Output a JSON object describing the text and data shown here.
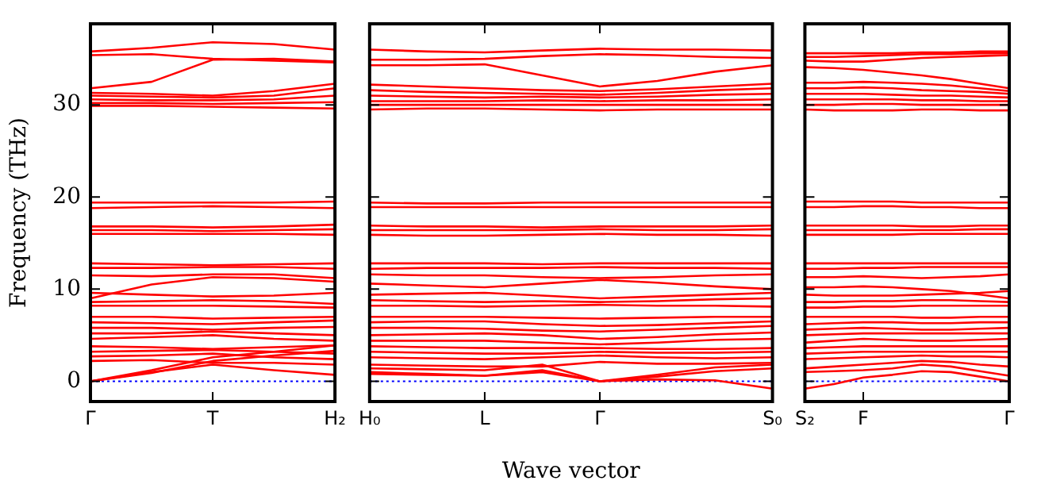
{
  "chart_data": [
    {
      "type": "line",
      "ylabel": "Frequency (THz)",
      "categories": [
        "Γ",
        null,
        "T",
        null,
        "H₂"
      ],
      "ylim": [
        -2.2,
        38.8
      ],
      "yticks": [
        0,
        10,
        20,
        30
      ],
      "ref_lines": [
        {
          "axis": "y",
          "value": 0,
          "color": "#0000ff",
          "line_style": "dotted"
        }
      ],
      "series": [
        {
          "color": "#ff0000",
          "values": [
            35.8,
            36.2,
            36.8,
            36.6,
            36.0
          ]
        },
        {
          "color": "#ff0000",
          "values": [
            35.4,
            35.5,
            35.0,
            34.8,
            34.6
          ]
        },
        {
          "color": "#ff0000",
          "values": [
            31.8,
            32.5,
            34.9,
            35.0,
            34.7
          ]
        },
        {
          "color": "#ff0000",
          "values": [
            31.3,
            31.2,
            31.0,
            31.5,
            32.3
          ]
        },
        {
          "color": "#ff0000",
          "values": [
            31.0,
            30.9,
            30.8,
            31.0,
            31.8
          ]
        },
        {
          "color": "#ff0000",
          "values": [
            30.6,
            30.5,
            30.5,
            30.6,
            31.0
          ]
        },
        {
          "color": "#ff0000",
          "values": [
            30.2,
            30.2,
            30.1,
            30.2,
            30.3
          ]
        },
        {
          "color": "#ff0000",
          "values": [
            29.9,
            29.9,
            29.8,
            29.7,
            29.6
          ]
        },
        {
          "color": "#ff0000",
          "values": [
            19.4,
            19.4,
            19.4,
            19.4,
            19.5
          ]
        },
        {
          "color": "#ff0000",
          "values": [
            18.8,
            18.9,
            19.0,
            18.9,
            18.8
          ]
        },
        {
          "color": "#ff0000",
          "values": [
            16.8,
            16.8,
            16.7,
            16.8,
            17.0
          ]
        },
        {
          "color": "#ff0000",
          "values": [
            16.4,
            16.4,
            16.3,
            16.4,
            16.5
          ]
        },
        {
          "color": "#ff0000",
          "values": [
            16.0,
            16.0,
            16.0,
            16.0,
            15.9
          ]
        },
        {
          "color": "#ff0000",
          "values": [
            12.8,
            12.7,
            12.6,
            12.7,
            12.8
          ]
        },
        {
          "color": "#ff0000",
          "values": [
            12.3,
            12.3,
            12.4,
            12.4,
            12.2
          ]
        },
        {
          "color": "#ff0000",
          "values": [
            11.5,
            11.4,
            11.6,
            11.6,
            11.2
          ]
        },
        {
          "color": "#ff0000",
          "values": [
            9.0,
            10.5,
            11.3,
            11.2,
            10.8
          ]
        },
        {
          "color": "#ff0000",
          "values": [
            9.6,
            9.4,
            9.2,
            9.3,
            9.6
          ]
        },
        {
          "color": "#ff0000",
          "values": [
            8.6,
            8.7,
            8.8,
            8.7,
            8.4
          ]
        },
        {
          "color": "#ff0000",
          "values": [
            8.2,
            8.2,
            8.2,
            8.1,
            8.0
          ]
        },
        {
          "color": "#ff0000",
          "values": [
            7.0,
            7.0,
            6.8,
            6.9,
            7.0
          ]
        },
        {
          "color": "#ff0000",
          "values": [
            6.4,
            6.3,
            6.2,
            6.4,
            6.6
          ]
        },
        {
          "color": "#ff0000",
          "values": [
            5.8,
            5.8,
            5.6,
            5.8,
            5.9
          ]
        },
        {
          "color": "#ff0000",
          "values": [
            5.2,
            5.2,
            5.4,
            5.2,
            5.0
          ]
        },
        {
          "color": "#ff0000",
          "values": [
            4.6,
            4.8,
            5.0,
            4.6,
            4.4
          ]
        },
        {
          "color": "#ff0000",
          "values": [
            3.8,
            3.7,
            3.5,
            3.7,
            3.9
          ]
        },
        {
          "color": "#ff0000",
          "values": [
            3.2,
            3.3,
            3.4,
            3.2,
            3.0
          ]
        },
        {
          "color": "#ff0000",
          "values": [
            2.7,
            2.8,
            3.0,
            2.6,
            2.4
          ]
        },
        {
          "color": "#ff0000",
          "values": [
            2.2,
            2.3,
            2.0,
            2.0,
            1.8
          ]
        },
        {
          "color": "#ff0000",
          "values": [
            0,
            1.0,
            1.8,
            1.2,
            0.7
          ]
        },
        {
          "color": "#ff0000",
          "values": [
            0,
            0.9,
            2.2,
            2.8,
            3.3
          ]
        },
        {
          "color": "#ff0000",
          "values": [
            0,
            1.2,
            2.6,
            3.2,
            3.9
          ]
        }
      ]
    },
    {
      "type": "line",
      "xlabel": "Wave vector",
      "categories": [
        "H₀",
        null,
        "L",
        null,
        "Γ",
        null,
        null,
        "S₀"
      ],
      "ylim": [
        -2.2,
        38.8
      ],
      "yticks": [
        0,
        10,
        20,
        30
      ],
      "tick_labels": "x",
      "ref_lines": [
        {
          "axis": "y",
          "value": 0,
          "color": "#0000ff",
          "line_style": "dotted"
        }
      ],
      "series": [
        {
          "color": "#ff0000",
          "values": [
            36.0,
            35.8,
            35.7,
            35.9,
            36.1,
            36.0,
            36.0,
            35.9
          ]
        },
        {
          "color": "#ff0000",
          "values": [
            34.9,
            34.9,
            35.0,
            35.3,
            35.5,
            35.4,
            35.2,
            35.1
          ]
        },
        {
          "color": "#ff0000",
          "values": [
            34.3,
            34.3,
            34.4,
            33.2,
            32.0,
            32.6,
            33.6,
            34.3
          ]
        },
        {
          "color": "#ff0000",
          "values": [
            32.2,
            32.0,
            31.8,
            31.6,
            31.5,
            31.7,
            32.0,
            32.3
          ]
        },
        {
          "color": "#ff0000",
          "values": [
            31.6,
            31.4,
            31.3,
            31.2,
            31.1,
            31.3,
            31.6,
            31.8
          ]
        },
        {
          "color": "#ff0000",
          "values": [
            31.0,
            30.9,
            30.8,
            30.9,
            30.8,
            30.9,
            31.1,
            31.2
          ]
        },
        {
          "color": "#ff0000",
          "values": [
            30.4,
            30.4,
            30.4,
            30.5,
            30.4,
            30.5,
            30.5,
            30.6
          ]
        },
        {
          "color": "#ff0000",
          "values": [
            30.0,
            30.0,
            30.0,
            30.0,
            30.0,
            30.0,
            30.0,
            30.0
          ]
        },
        {
          "color": "#ff0000",
          "values": [
            29.5,
            29.6,
            29.6,
            29.5,
            29.4,
            29.5,
            29.5,
            29.5
          ]
        },
        {
          "color": "#ff0000",
          "values": [
            19.4,
            19.3,
            19.3,
            19.4,
            19.4,
            19.4,
            19.4,
            19.4
          ]
        },
        {
          "color": "#ff0000",
          "values": [
            18.9,
            18.9,
            18.9,
            18.9,
            18.9,
            18.9,
            18.9,
            18.9
          ]
        },
        {
          "color": "#ff0000",
          "values": [
            16.9,
            16.8,
            16.8,
            16.7,
            16.8,
            16.8,
            16.8,
            16.9
          ]
        },
        {
          "color": "#ff0000",
          "values": [
            16.4,
            16.4,
            16.4,
            16.4,
            16.5,
            16.4,
            16.4,
            16.5
          ]
        },
        {
          "color": "#ff0000",
          "values": [
            15.9,
            15.8,
            15.8,
            15.9,
            16.0,
            15.9,
            15.9,
            15.8
          ]
        },
        {
          "color": "#ff0000",
          "values": [
            12.8,
            12.8,
            12.8,
            12.7,
            12.8,
            12.8,
            12.8,
            12.8
          ]
        },
        {
          "color": "#ff0000",
          "values": [
            12.2,
            12.3,
            12.3,
            12.3,
            12.4,
            12.3,
            12.3,
            12.2
          ]
        },
        {
          "color": "#ff0000",
          "values": [
            11.6,
            11.5,
            11.5,
            11.3,
            11.2,
            11.3,
            11.5,
            11.6
          ]
        },
        {
          "color": "#ff0000",
          "values": [
            10.6,
            10.4,
            10.2,
            10.6,
            11.0,
            10.7,
            10.3,
            10.0
          ]
        },
        {
          "color": "#ff0000",
          "values": [
            9.4,
            9.5,
            9.6,
            9.3,
            9.0,
            9.2,
            9.4,
            9.6
          ]
        },
        {
          "color": "#ff0000",
          "values": [
            8.8,
            8.7,
            8.6,
            8.7,
            8.6,
            8.7,
            8.9,
            9.0
          ]
        },
        {
          "color": "#ff0000",
          "values": [
            8.2,
            8.2,
            8.1,
            8.2,
            8.3,
            8.2,
            8.2,
            8.1
          ]
        },
        {
          "color": "#ff0000",
          "values": [
            7.0,
            7.0,
            7.0,
            6.9,
            6.8,
            6.9,
            7.0,
            7.0
          ]
        },
        {
          "color": "#ff0000",
          "values": [
            6.4,
            6.5,
            6.5,
            6.2,
            6.0,
            6.1,
            6.3,
            6.5
          ]
        },
        {
          "color": "#ff0000",
          "values": [
            5.8,
            5.8,
            5.7,
            5.5,
            5.4,
            5.6,
            5.8,
            6.0
          ]
        },
        {
          "color": "#ff0000",
          "values": [
            5.0,
            5.1,
            5.2,
            5.0,
            4.6,
            4.8,
            5.1,
            5.3
          ]
        },
        {
          "color": "#ff0000",
          "values": [
            4.4,
            4.4,
            4.4,
            4.2,
            4.0,
            4.2,
            4.5,
            4.6
          ]
        },
        {
          "color": "#ff0000",
          "values": [
            3.8,
            3.7,
            3.6,
            3.6,
            3.6,
            3.5,
            3.5,
            3.6
          ]
        },
        {
          "color": "#ff0000",
          "values": [
            3.2,
            3.1,
            3.0,
            3.0,
            3.2,
            3.1,
            3.1,
            3.2
          ]
        },
        {
          "color": "#ff0000",
          "values": [
            2.6,
            2.5,
            2.4,
            2.6,
            2.8,
            2.6,
            2.5,
            2.6
          ]
        },
        {
          "color": "#ff0000",
          "values": [
            1.8,
            1.7,
            1.6,
            1.6,
            2.1,
            1.9,
            1.9,
            2.0
          ]
        },
        {
          "color": "#ff0000",
          "values": [
            1.4,
            1.3,
            1.2,
            1.8,
            0,
            0.7,
            1.5,
            1.8
          ]
        },
        {
          "color": "#ff0000",
          "values": [
            1.0,
            0.8,
            0.6,
            1.2,
            0,
            0.5,
            1.1,
            1.4
          ]
        },
        {
          "color": "#ff0000",
          "values": [
            0.8,
            0.7,
            0.6,
            1.0,
            0,
            0.2,
            0.1,
            -0.8
          ]
        }
      ]
    },
    {
      "type": "line",
      "categories": [
        "S₂",
        null,
        "F",
        null,
        null,
        null,
        null,
        "Γ"
      ],
      "ylim": [
        -2.2,
        38.8
      ],
      "yticks": [
        0,
        10,
        20,
        30
      ],
      "tick_labels": "x",
      "ref_lines": [
        {
          "axis": "y",
          "value": 0,
          "color": "#0000ff",
          "line_style": "dotted"
        }
      ],
      "series": [
        {
          "color": "#ff0000",
          "values": [
            35.6,
            35.6,
            35.6,
            35.6,
            35.7,
            35.7,
            35.8,
            35.8
          ]
        },
        {
          "color": "#ff0000",
          "values": [
            35.2,
            35.2,
            35.3,
            35.4,
            35.5,
            35.5,
            35.6,
            35.6
          ]
        },
        {
          "color": "#ff0000",
          "values": [
            34.8,
            34.7,
            34.7,
            34.9,
            35.1,
            35.2,
            35.3,
            35.4
          ]
        },
        {
          "color": "#ff0000",
          "values": [
            34.1,
            34.0,
            33.8,
            33.5,
            33.2,
            32.8,
            32.3,
            31.8
          ]
        },
        {
          "color": "#ff0000",
          "values": [
            32.4,
            32.4,
            32.5,
            32.4,
            32.3,
            32.1,
            31.8,
            31.5
          ]
        },
        {
          "color": "#ff0000",
          "values": [
            31.8,
            31.8,
            31.9,
            31.8,
            31.6,
            31.5,
            31.4,
            31.2
          ]
        },
        {
          "color": "#ff0000",
          "values": [
            31.2,
            31.2,
            31.2,
            31.1,
            31.0,
            31.0,
            30.9,
            30.8
          ]
        },
        {
          "color": "#ff0000",
          "values": [
            30.6,
            30.6,
            30.6,
            30.6,
            30.5,
            30.5,
            30.4,
            30.4
          ]
        },
        {
          "color": "#ff0000",
          "values": [
            30.0,
            30.0,
            30.1,
            30.1,
            30.0,
            30.0,
            30.0,
            30.0
          ]
        },
        {
          "color": "#ff0000",
          "values": [
            29.5,
            29.4,
            29.4,
            29.4,
            29.5,
            29.5,
            29.4,
            29.4
          ]
        },
        {
          "color": "#ff0000",
          "values": [
            19.5,
            19.5,
            19.5,
            19.5,
            19.4,
            19.4,
            19.4,
            19.4
          ]
        },
        {
          "color": "#ff0000",
          "values": [
            18.9,
            18.9,
            19.0,
            19.0,
            18.9,
            18.9,
            18.8,
            18.8
          ]
        },
        {
          "color": "#ff0000",
          "values": [
            16.9,
            16.9,
            16.9,
            16.9,
            16.8,
            16.8,
            16.9,
            16.9
          ]
        },
        {
          "color": "#ff0000",
          "values": [
            16.4,
            16.4,
            16.4,
            16.4,
            16.4,
            16.4,
            16.5,
            16.5
          ]
        },
        {
          "color": "#ff0000",
          "values": [
            15.9,
            15.9,
            15.9,
            15.9,
            16.0,
            16.0,
            16.0,
            16.0
          ]
        },
        {
          "color": "#ff0000",
          "values": [
            12.8,
            12.8,
            12.8,
            12.8,
            12.8,
            12.8,
            12.8,
            12.8
          ]
        },
        {
          "color": "#ff0000",
          "values": [
            12.2,
            12.2,
            12.3,
            12.3,
            12.4,
            12.4,
            12.4,
            12.4
          ]
        },
        {
          "color": "#ff0000",
          "values": [
            11.3,
            11.3,
            11.4,
            11.3,
            11.2,
            11.3,
            11.4,
            11.6
          ]
        },
        {
          "color": "#ff0000",
          "values": [
            10.2,
            10.2,
            10.3,
            10.2,
            10.0,
            9.8,
            9.4,
            9.0
          ]
        },
        {
          "color": "#ff0000",
          "values": [
            9.4,
            9.3,
            9.3,
            9.3,
            9.4,
            9.5,
            9.6,
            9.8
          ]
        },
        {
          "color": "#ff0000",
          "values": [
            8.6,
            8.6,
            8.7,
            8.7,
            8.8,
            8.8,
            8.7,
            8.6
          ]
        },
        {
          "color": "#ff0000",
          "values": [
            8.0,
            8.0,
            8.1,
            8.1,
            8.2,
            8.2,
            8.2,
            8.2
          ]
        },
        {
          "color": "#ff0000",
          "values": [
            7.0,
            7.0,
            7.0,
            7.0,
            6.9,
            6.9,
            7.0,
            7.0
          ]
        },
        {
          "color": "#ff0000",
          "values": [
            6.2,
            6.3,
            6.4,
            6.4,
            6.3,
            6.3,
            6.4,
            6.4
          ]
        },
        {
          "color": "#ff0000",
          "values": [
            5.6,
            5.7,
            5.8,
            5.7,
            5.6,
            5.6,
            5.7,
            5.8
          ]
        },
        {
          "color": "#ff0000",
          "values": [
            5.0,
            5.1,
            5.2,
            5.2,
            5.2,
            5.2,
            5.2,
            5.2
          ]
        },
        {
          "color": "#ff0000",
          "values": [
            4.2,
            4.4,
            4.6,
            4.5,
            4.4,
            4.4,
            4.5,
            4.6
          ]
        },
        {
          "color": "#ff0000",
          "values": [
            3.6,
            3.7,
            3.8,
            3.8,
            3.8,
            3.8,
            3.8,
            3.8
          ]
        },
        {
          "color": "#ff0000",
          "values": [
            3.0,
            3.1,
            3.2,
            3.2,
            3.2,
            3.2,
            3.2,
            3.2
          ]
        },
        {
          "color": "#ff0000",
          "values": [
            2.4,
            2.5,
            2.6,
            2.7,
            2.8,
            2.7,
            2.7,
            2.6
          ]
        },
        {
          "color": "#ff0000",
          "values": [
            1.4,
            1.6,
            1.8,
            2.0,
            2.2,
            2.1,
            1.8,
            1.6
          ]
        },
        {
          "color": "#ff0000",
          "values": [
            1.0,
            1.1,
            1.2,
            1.4,
            1.8,
            1.6,
            1.1,
            0.6
          ]
        },
        {
          "color": "#ff0000",
          "values": [
            -0.8,
            -0.3,
            0.4,
            0.7,
            1.1,
            1.0,
            0.5,
            0
          ]
        }
      ]
    }
  ]
}
